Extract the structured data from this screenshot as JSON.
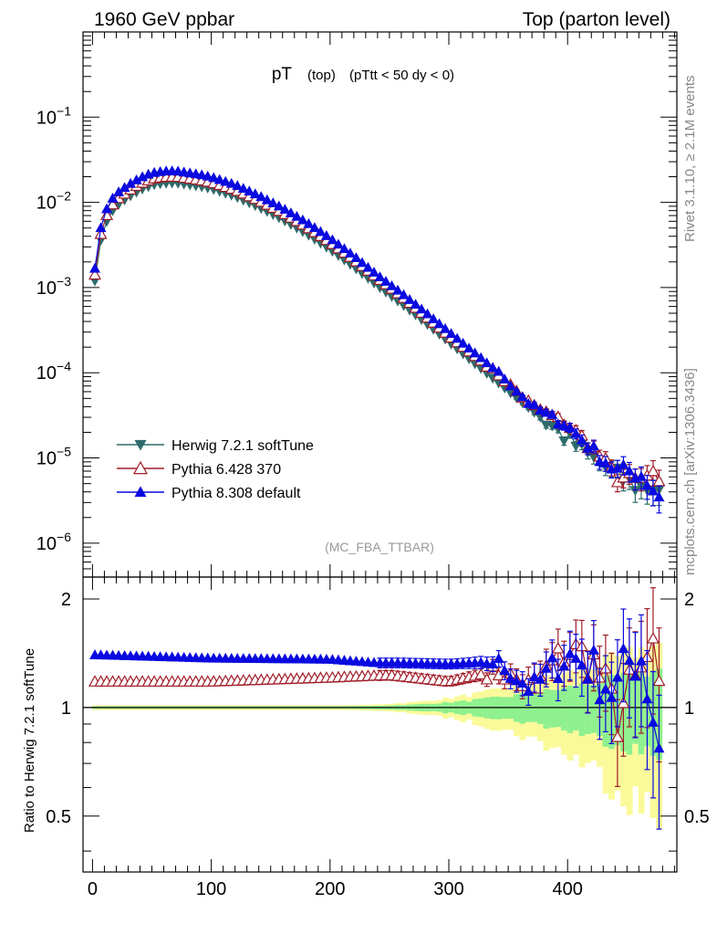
{
  "header": {
    "left_title": "1960 GeV ppbar",
    "right_title": "Top (parton level)"
  },
  "side_labels": {
    "rivet": "Rivet 3.1.10, ≥ 2.1M events",
    "mcplots": "mcplots.cern.ch [arXiv:1306.3436]"
  },
  "chart_data": [
    {
      "type": "scatter",
      "panel": "main",
      "title_main": "pT",
      "title_sub": "(top)",
      "title_cut": "(pTtt < 50 dy < 0)",
      "analysis_tag": "(MC_FBA_TTBAR)",
      "ylog": true,
      "xlim": [
        -8,
        492
      ],
      "ylim": [
        4e-07,
        1
      ],
      "ytick_labels": [
        {
          "mant": "10",
          "exp": "−1",
          "value": 0.1
        },
        {
          "mant": "10",
          "exp": "−2",
          "value": 0.01
        },
        {
          "mant": "10",
          "exp": "−3",
          "value": 0.001
        },
        {
          "mant": "10",
          "exp": "−4",
          "value": 0.0001
        },
        {
          "mant": "10",
          "exp": "−5",
          "value": 1e-05
        },
        {
          "mant": "10",
          "exp": "−6",
          "value": 1e-06
        }
      ],
      "legend_position": "lower-left",
      "series": [
        {
          "name": "Herwig 7.2.1 softTune",
          "color": "#2d6b6b",
          "marker": "triangle-down-filled",
          "model": {
            "x": [
              2,
              7,
              12,
              17,
              22,
              30,
              40,
              50,
              60,
              70,
              80,
              90,
              100,
              120,
              140,
              160,
              180,
              200,
              220,
              240,
              260,
              280,
              300,
              320,
              340,
              360,
              380,
              400,
              420,
              440,
              460,
              475
            ],
            "y": [
              0.0012,
              0.0036,
              0.006,
              0.008,
              0.0095,
              0.0115,
              0.014,
              0.016,
              0.0168,
              0.017,
              0.0162,
              0.0155,
              0.0145,
              0.0118,
              0.0088,
              0.0063,
              0.0043,
              0.0028,
              0.00175,
              0.00105,
              0.00065,
              0.00039,
              0.00023,
              0.000135,
              8e-05,
              4.7e-05,
              2.8e-05,
              1.7e-05,
              1e-05,
              6.5e-06,
              4.5e-06,
              4.5e-06
            ]
          }
        },
        {
          "name": "Pythia 6.428 370",
          "color": "#a01c28",
          "marker": "triangle-up-open"
        },
        {
          "name": "Pythia 8.308 default",
          "color": "#0a0ae0",
          "marker": "triangle-up-filled"
        }
      ]
    },
    {
      "type": "scatter",
      "panel": "ratio",
      "ylabel": "Ratio to Herwig 7.2.1 softTune",
      "xlim": [
        -8,
        492
      ],
      "ylim": [
        0.35,
        2.3
      ],
      "yticks": [
        0.5,
        1,
        2
      ],
      "ytick_labels": [
        "0.5",
        "1",
        "2"
      ],
      "xticks": [
        0,
        100,
        200,
        300,
        400
      ],
      "xtick_labels": [
        "0",
        "100",
        "200",
        "300",
        "400"
      ],
      "reference_line": 1,
      "band_colors": {
        "inner": "#8ff08f",
        "outer": "#fafa9a"
      },
      "series": [
        {
          "name": "Pythia 6.428 370",
          "color": "#a01c28",
          "model": {
            "x": [
              0,
              100,
              200,
              250,
              300,
              340,
              370,
              400,
              420,
              440,
              460,
              470,
              480
            ],
            "y": [
              1.18,
              1.18,
              1.21,
              1.23,
              1.18,
              1.26,
              1.14,
              1.45,
              1.37,
              0.95,
              1.16,
              1.4,
              0.78
            ]
          }
        },
        {
          "name": "Pythia 8.308 default",
          "color": "#0a0ae0",
          "model": {
            "x": [
              0,
              100,
              200,
              240,
              260,
              300,
              340,
              370,
              400,
              420,
              440,
              460,
              470,
              480
            ],
            "y": [
              1.4,
              1.37,
              1.36,
              1.33,
              1.33,
              1.32,
              1.34,
              1.12,
              1.4,
              1.3,
              1.1,
              1.5,
              1.05,
              0.7
            ]
          }
        }
      ]
    }
  ]
}
